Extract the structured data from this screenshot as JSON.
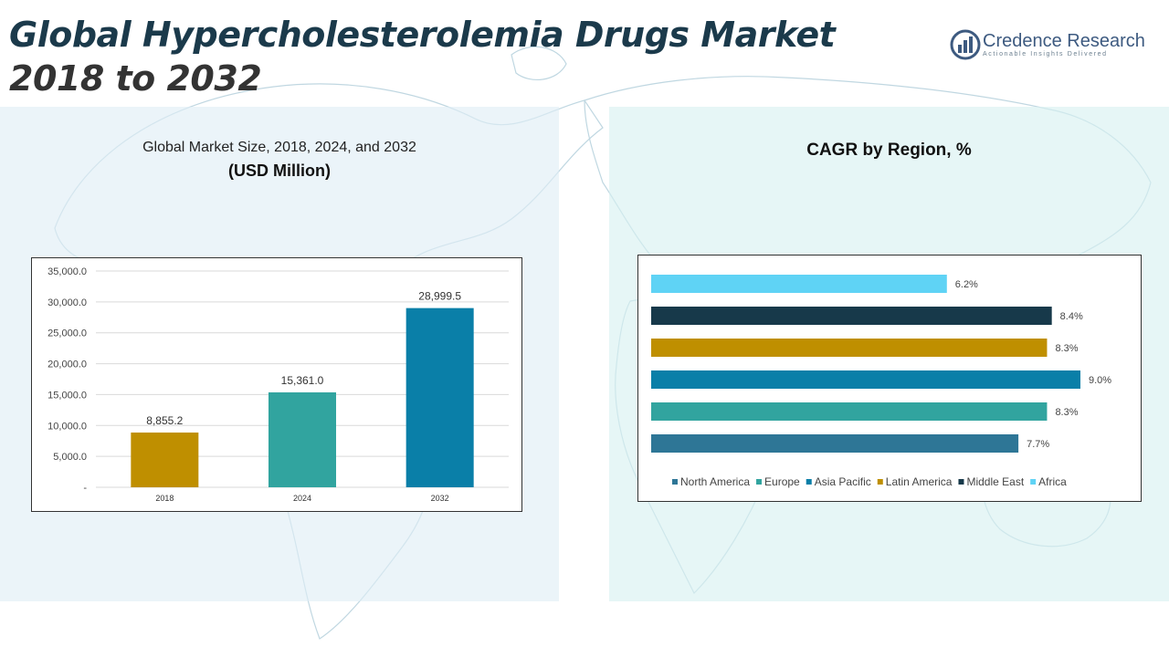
{
  "header": {
    "title_line1": "Global Hypercholesterolemia Drugs Market",
    "title_line2": "2018 to 2032"
  },
  "brand": {
    "name": "Credence Research",
    "tagline": "Actionable Insights Delivered",
    "color": "#3d5a80"
  },
  "left_panel": {
    "subtitle": "Global Market Size, 2018, 2024, and 2032",
    "unit": "(USD Million)"
  },
  "right_panel": {
    "title": "CAGR by Region, %"
  },
  "chart_data": [
    {
      "type": "bar",
      "categories": [
        "2018",
        "2024",
        "2032"
      ],
      "values": [
        8855.2,
        15361.0,
        28999.5
      ],
      "value_labels": [
        "8,855.2",
        "15,361.0",
        "28,999.5"
      ],
      "colors": [
        "#bf8f00",
        "#31a49f",
        "#0a7fa8"
      ],
      "ylim": [
        0,
        35000
      ],
      "yticks": [
        0,
        5000,
        10000,
        15000,
        20000,
        25000,
        30000,
        35000
      ],
      "ytick_labels": [
        "-",
        "5,000.0",
        "10,000.0",
        "15,000.0",
        "20,000.0",
        "25,000.0",
        "30,000.0",
        "35,000.0"
      ],
      "grid": true
    },
    {
      "type": "bar",
      "orientation": "horizontal",
      "categories": [
        "North America",
        "Europe",
        "Asia Pacific",
        "Latin America",
        "Middle East",
        "Africa"
      ],
      "values": [
        7.7,
        8.3,
        9.0,
        8.3,
        8.4,
        6.2
      ],
      "value_labels": [
        "7.7%",
        "8.3%",
        "9.0%",
        "8.3%",
        "8.4%",
        "6.2%"
      ],
      "colors": [
        "#2e7696",
        "#31a49f",
        "#0a7fa8",
        "#bf8f00",
        "#17394a",
        "#5fd3f5"
      ],
      "legend_position": "bottom",
      "grid": false
    }
  ]
}
